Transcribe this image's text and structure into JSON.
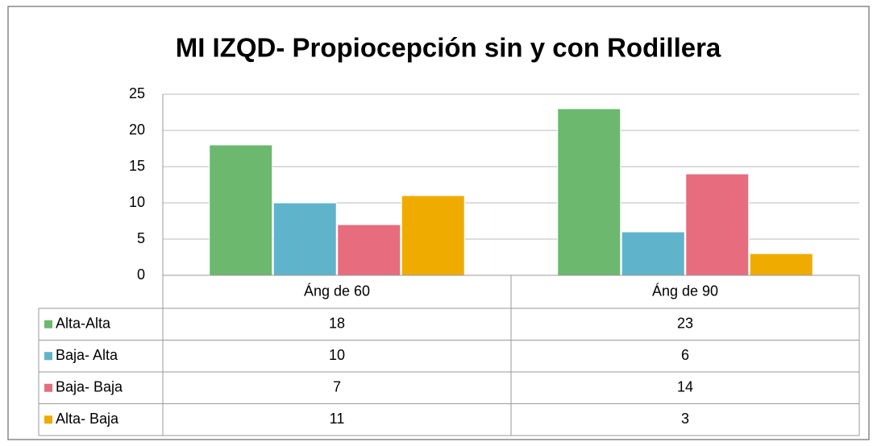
{
  "chart_data": {
    "type": "bar",
    "title": "MI IZQD- Propiocepción sin y con Rodillera",
    "categories": [
      "Áng de 60",
      "Áng de 90"
    ],
    "series": [
      {
        "name": "Alta-Alta",
        "color": "#6bb86e",
        "values": [
          18,
          23
        ]
      },
      {
        "name": "Baja- Alta",
        "color": "#5fb4cc",
        "values": [
          10,
          6
        ]
      },
      {
        "name": "Baja- Baja",
        "color": "#e76c7e",
        "values": [
          7,
          14
        ]
      },
      {
        "name": "Alta- Baja",
        "color": "#f0ab00",
        "values": [
          11,
          3
        ]
      }
    ],
    "ylim": [
      0,
      25
    ],
    "yticks": [
      0,
      5,
      10,
      15,
      20,
      25
    ],
    "grid": true,
    "data_table": true
  }
}
